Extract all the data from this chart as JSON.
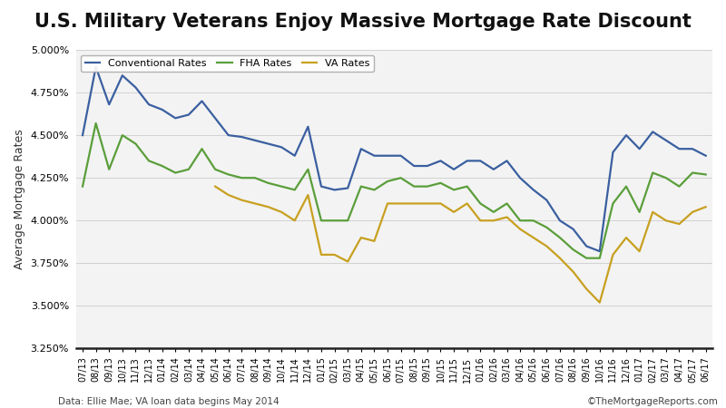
{
  "title": "U.S. Military Veterans Enjoy Massive Mortgage Rate Discount",
  "ylabel": "Average Mortgage Rates",
  "footnote_left": "Data: Ellie Mae; VA loan data begins May 2014",
  "footnote_right": "©TheMortgageReports.com",
  "ylim": [
    0.0325,
    0.05
  ],
  "yticks": [
    0.0325,
    0.035,
    0.0375,
    0.04,
    0.0425,
    0.045,
    0.0475,
    0.05
  ],
  "legend": [
    "Conventional Rates",
    "FHA Rates",
    "VA Rates"
  ],
  "colors": {
    "conventional": "#3a5fa0",
    "fha": "#5a9e3a",
    "va": "#c8a020"
  },
  "x_labels": [
    "07/13",
    "08/13",
    "09/13",
    "10/13",
    "11/13",
    "12/13",
    "01/14",
    "02/14",
    "03/14",
    "04/14",
    "05/14",
    "06/14",
    "07/14",
    "08/14",
    "09/14",
    "10/14",
    "11/14",
    "12/14",
    "01/15",
    "02/15",
    "03/15",
    "04/15",
    "05/15",
    "06/15",
    "07/15",
    "08/15",
    "09/15",
    "10/15",
    "11/15",
    "12/15",
    "01/16",
    "02/16",
    "03/16",
    "04/16",
    "05/16",
    "06/16",
    "07/16",
    "08/16",
    "09/16",
    "10/16",
    "11/16",
    "12/16",
    "01/17",
    "02/17",
    "03/17",
    "04/17",
    "05/17",
    "06/17"
  ],
  "conventional": [
    0.045,
    0.049,
    0.0468,
    0.0485,
    0.0478,
    0.0468,
    0.0465,
    0.046,
    0.0462,
    0.047,
    0.046,
    0.045,
    0.0449,
    0.0447,
    0.0445,
    0.0443,
    0.0438,
    0.0455,
    0.042,
    0.0418,
    0.0419,
    0.0442,
    0.0438,
    0.0438,
    0.0438,
    0.0432,
    0.0432,
    0.0435,
    0.043,
    0.0435,
    0.0435,
    0.043,
    0.0435,
    0.0425,
    0.0418,
    0.0412,
    0.04,
    0.0395,
    0.0385,
    0.0382,
    0.044,
    0.045,
    0.0442,
    0.0452,
    0.0447,
    0.0442,
    0.0442,
    0.0438
  ],
  "fha": [
    0.042,
    0.0457,
    0.043,
    0.045,
    0.0445,
    0.0435,
    0.0432,
    0.0428,
    0.043,
    0.0442,
    0.043,
    0.0427,
    0.0425,
    0.0425,
    0.0422,
    0.042,
    0.0418,
    0.043,
    0.04,
    0.04,
    0.04,
    0.042,
    0.0418,
    0.0423,
    0.0425,
    0.042,
    0.042,
    0.0422,
    0.0418,
    0.042,
    0.041,
    0.0405,
    0.041,
    0.04,
    0.04,
    0.0396,
    0.039,
    0.0383,
    0.0378,
    0.0378,
    0.041,
    0.042,
    0.0405,
    0.0428,
    0.0425,
    0.042,
    0.0428,
    0.0427
  ],
  "va": [
    null,
    null,
    null,
    null,
    null,
    null,
    null,
    null,
    null,
    null,
    0.042,
    0.0415,
    0.0412,
    0.041,
    0.0408,
    0.0405,
    0.04,
    0.0415,
    0.038,
    0.038,
    0.0376,
    0.039,
    0.0388,
    0.041,
    0.041,
    0.041,
    0.041,
    0.041,
    0.0405,
    0.041,
    0.04,
    0.04,
    0.0402,
    0.0395,
    0.039,
    0.0385,
    0.0378,
    0.037,
    0.036,
    0.0352,
    0.038,
    0.039,
    0.0382,
    0.0405,
    0.04,
    0.0398,
    0.0405,
    0.0408
  ],
  "bg_color": "#ffffff",
  "grid_color": "#cccccc",
  "title_fontsize": 15,
  "tick_fontsize": 7,
  "ylabel_fontsize": 9
}
